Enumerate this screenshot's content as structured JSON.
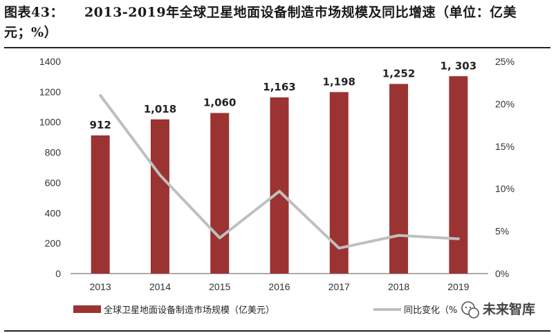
{
  "header": {
    "figure_label": "图表43：",
    "title_line1": "2013-2019年全球卫星地面设备制造市场规模及同比增速（单位：亿美",
    "title_line2": "元；%）"
  },
  "watermark": {
    "text": "未来智库",
    "icon": "wechat-icon"
  },
  "chart_data": {
    "type": "bar",
    "categories": [
      "2013",
      "2014",
      "2015",
      "2016",
      "2017",
      "2018",
      "2019"
    ],
    "series": [
      {
        "name": "全球卫星地面设备制造市场规模（亿美元）",
        "type": "bar",
        "axis": "left",
        "color": "#9b3333",
        "values": [
          912,
          1018,
          1060,
          1163,
          1198,
          1252,
          1303
        ],
        "labels": [
          "912",
          "1,018",
          "1,060",
          "1,163",
          "1,198",
          "1,252",
          "1, 303"
        ]
      },
      {
        "name": "同比变化（%",
        "type": "line",
        "axis": "right",
        "color": "#bfbfbf",
        "values": [
          21.0,
          11.6,
          4.2,
          9.7,
          3.0,
          4.5,
          4.1
        ]
      }
    ],
    "y_left": {
      "min": 0,
      "max": 1400,
      "ticks": [
        "0",
        "200",
        "400",
        "600",
        "800",
        "1000",
        "1200",
        "1400"
      ]
    },
    "y_right": {
      "min": 0,
      "max": 25,
      "ticks": [
        "0%",
        "5%",
        "10%",
        "15%",
        "20%",
        "25%"
      ]
    },
    "grid": false,
    "legend": "bottom"
  }
}
